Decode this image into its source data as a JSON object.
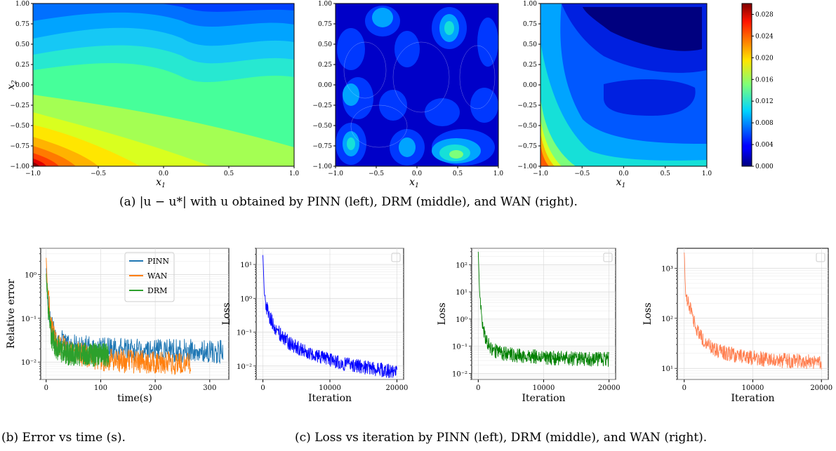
{
  "captions": {
    "a": "(a) |u − u*| with u obtained by PINN (left), DRM (middle), and WAN (right).",
    "b": "(b) Error vs time (s).",
    "c": "(c) Loss vs iteration by PINN (left), DRM (middle), and WAN (right)."
  },
  "chart_data": [
    {
      "type": "heatmap",
      "panel": "PINN",
      "xlabel": "x1",
      "ylabel": "x2",
      "xlim": [
        -1.0,
        1.0
      ],
      "ylim": [
        -1.0,
        1.0
      ],
      "xticks": [
        "−1.0",
        "−0.5",
        "0.0",
        "0.5",
        "1.0"
      ],
      "yticks": [
        "−1.00",
        "−0.75",
        "−0.50",
        "−0.25",
        "0.00",
        "0.25",
        "0.50",
        "0.75",
        "1.00"
      ],
      "description_values": {
        "max_at": [
          -1.0,
          -1.0
        ],
        "max": 0.03,
        "min_at": [
          1.0,
          1.0
        ],
        "min": 0.008
      }
    },
    {
      "type": "heatmap",
      "panel": "DRM",
      "xlabel": "x1",
      "ylabel": "",
      "xlim": [
        -1.0,
        1.0
      ],
      "ylim": [
        -1.0,
        1.0
      ],
      "xticks": [
        "−1.0",
        "−0.5",
        "0.0",
        "0.5",
        "1.0"
      ],
      "yticks": [
        "−1.00",
        "−0.75",
        "−0.50",
        "−0.25",
        "0.00",
        "0.25",
        "0.50",
        "0.75",
        "1.00"
      ],
      "description_values": {
        "max": 0.02,
        "min": 0.0
      }
    },
    {
      "type": "heatmap",
      "panel": "WAN",
      "xlabel": "x1",
      "ylabel": "",
      "xlim": [
        -1.0,
        1.0
      ],
      "ylim": [
        -1.0,
        1.0
      ],
      "xticks": [
        "−1.0",
        "−0.5",
        "0.0",
        "0.5",
        "1.0"
      ],
      "yticks": [
        "−1.00",
        "−0.75",
        "−0.50",
        "−0.25",
        "0.00",
        "0.25",
        "0.50",
        "0.75",
        "1.00"
      ],
      "description_values": {
        "max_at": [
          -1.0,
          -1.0
        ],
        "max": 0.026,
        "min": 0.002
      }
    },
    {
      "type": "colorbar",
      "range": [
        0.0,
        0.03
      ],
      "ticks": [
        "0.000",
        "0.004",
        "0.008",
        "0.012",
        "0.016",
        "0.020",
        "0.024",
        "0.028"
      ],
      "tick_values": [
        0.0,
        0.004,
        0.008,
        0.012,
        0.016,
        0.02,
        0.024,
        0.028
      ]
    },
    {
      "type": "line",
      "panel": "error-vs-time",
      "xlabel": "time(s)",
      "ylabel": "Relative error",
      "yscale": "log",
      "xlim": [
        -10,
        335
      ],
      "ylim": [
        0.004,
        4
      ],
      "xticks": [
        "0",
        "100",
        "200",
        "300"
      ],
      "xtick_values": [
        0,
        100,
        200,
        300
      ],
      "yticks": [
        "10⁰",
        "10⁻¹",
        "10⁻²"
      ],
      "ytick_values": [
        1,
        0.1,
        0.01
      ],
      "legend": "top-right",
      "series": [
        {
          "name": "PINN",
          "color": "#1f77b4",
          "x": [
            0,
            2,
            5,
            10,
            20,
            40,
            80,
            120,
            200,
            260,
            325
          ],
          "y": [
            1.5,
            0.5,
            0.15,
            0.05,
            0.03,
            0.02,
            0.018,
            0.016,
            0.015,
            0.015,
            0.014
          ]
        },
        {
          "name": "WAN",
          "color": "#ff7f0e",
          "x": [
            0,
            2,
            5,
            10,
            20,
            40,
            80,
            120,
            200,
            265
          ],
          "y": [
            2.2,
            0.6,
            0.18,
            0.05,
            0.025,
            0.015,
            0.011,
            0.009,
            0.008,
            0.008
          ]
        },
        {
          "name": "DRM",
          "color": "#2ca02c",
          "x": [
            0,
            2,
            5,
            10,
            20,
            40,
            80,
            115
          ],
          "y": [
            1.0,
            0.3,
            0.09,
            0.03,
            0.017,
            0.013,
            0.012,
            0.012
          ]
        }
      ]
    },
    {
      "type": "line",
      "panel": "loss-PINN",
      "xlabel": "Iteration",
      "ylabel": "Loss",
      "yscale": "log",
      "xlim": [
        -1000,
        21000
      ],
      "ylim": [
        0.004,
        30
      ],
      "xticks": [
        "0",
        "10000",
        "20000"
      ],
      "xtick_values": [
        0,
        10000,
        20000
      ],
      "yticks": [
        "10¹",
        "10⁰",
        "10⁻¹",
        "10⁻²"
      ],
      "ytick_values": [
        10,
        1,
        0.1,
        0.01
      ],
      "series": [
        {
          "color": "#0000ff",
          "x": [
            0,
            200,
            500,
            1000,
            2000,
            4000,
            6000,
            8000,
            10000,
            12000,
            15000,
            18000,
            20000
          ],
          "y": [
            20,
            1.5,
            0.5,
            0.25,
            0.1,
            0.04,
            0.025,
            0.017,
            0.013,
            0.01,
            0.008,
            0.0065,
            0.006
          ]
        }
      ]
    },
    {
      "type": "line",
      "panel": "loss-DRM",
      "xlabel": "Iteration",
      "ylabel": "Loss",
      "yscale": "log",
      "xlim": [
        -1000,
        21000
      ],
      "ylim": [
        0.006,
        400
      ],
      "xticks": [
        "0",
        "10000",
        "20000"
      ],
      "xtick_values": [
        0,
        10000,
        20000
      ],
      "yticks": [
        "10²",
        "10¹",
        "10⁰",
        "10⁻¹",
        "10⁻²"
      ],
      "ytick_values": [
        100,
        10,
        1,
        0.1,
        0.01
      ],
      "series": [
        {
          "color": "#008000",
          "x": [
            0,
            200,
            500,
            1000,
            2000,
            3000,
            5000,
            8000,
            12000,
            16000,
            20000
          ],
          "y": [
            300,
            10,
            1.0,
            0.2,
            0.07,
            0.05,
            0.04,
            0.035,
            0.03,
            0.028,
            0.027
          ]
        }
      ]
    },
    {
      "type": "line",
      "panel": "loss-WAN",
      "xlabel": "Iteration",
      "ylabel": "Loss",
      "yscale": "log",
      "xlim": [
        -1000,
        21000
      ],
      "ylim": [
        6,
        2500
      ],
      "xticks": [
        "0",
        "10000",
        "20000"
      ],
      "xtick_values": [
        0,
        10000,
        20000
      ],
      "yticks": [
        "10³",
        "10²",
        "10¹"
      ],
      "ytick_values": [
        1000,
        100,
        10
      ],
      "series": [
        {
          "color": "#ff7f50",
          "x": [
            0,
            200,
            500,
            1000,
            2000,
            3000,
            5000,
            8000,
            11000,
            14000,
            17000,
            20000
          ],
          "y": [
            2000,
            300,
            200,
            120,
            50,
            30,
            20,
            16,
            14,
            13,
            12.5,
            12
          ]
        }
      ]
    }
  ]
}
